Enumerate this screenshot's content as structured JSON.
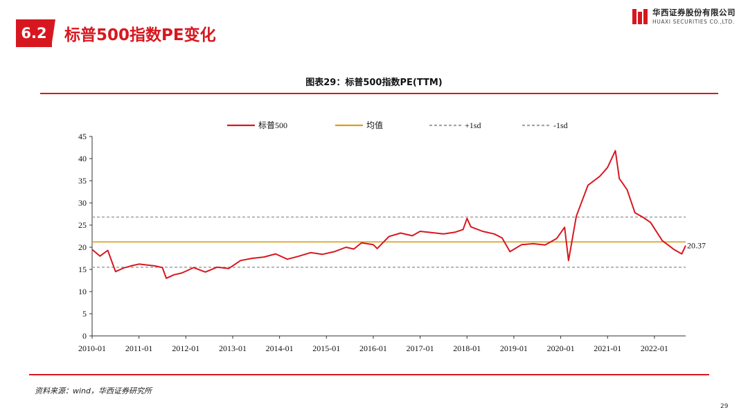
{
  "header": {
    "section_number": "6.2",
    "title": "标普500指数PE变化"
  },
  "logo": {
    "name_cn": "华西证券股份有限公司",
    "name_en": "HUAXI SECURITIES CO.,LTD."
  },
  "footer": {
    "source": "资料来源：wind，华西证券研究所",
    "page_number": "29"
  },
  "colors": {
    "brand_red": "#d7171f",
    "series_red": "#d7171f",
    "mean_line": "#d4a017",
    "sd_line": "#a6a6a6"
  },
  "chart_data": {
    "type": "line",
    "title": "图表29：标普500指数PE(TTM)",
    "xlabel": "",
    "ylabel": "",
    "ylim": [
      0,
      45
    ],
    "y_ticks": [
      0,
      5,
      10,
      15,
      20,
      25,
      30,
      35,
      40,
      45
    ],
    "x_ticks": [
      "2010-01",
      "2011-01",
      "2012-01",
      "2013-01",
      "2014-01",
      "2015-01",
      "2016-01",
      "2017-01",
      "2018-01",
      "2019-01",
      "2020-01",
      "2021-01",
      "2022-01"
    ],
    "x_range": [
      "2010-01",
      "2022-09"
    ],
    "grid": false,
    "legend_position": "top",
    "legend": [
      "标普500",
      "均值",
      "+1sd",
      "-1sd"
    ],
    "series": [
      {
        "name": "标普500",
        "x": [
          "2010-01",
          "2010-03",
          "2010-05",
          "2010-07",
          "2010-09",
          "2010-11",
          "2011-01",
          "2011-03",
          "2011-05",
          "2011-07",
          "2011-08",
          "2011-10",
          "2011-12",
          "2012-03",
          "2012-06",
          "2012-09",
          "2012-12",
          "2013-03",
          "2013-06",
          "2013-09",
          "2013-12",
          "2014-03",
          "2014-06",
          "2014-09",
          "2014-12",
          "2015-03",
          "2015-06",
          "2015-08",
          "2015-10",
          "2016-01",
          "2016-02",
          "2016-05",
          "2016-08",
          "2016-11",
          "2017-01",
          "2017-04",
          "2017-07",
          "2017-10",
          "2017-12",
          "2018-01",
          "2018-02",
          "2018-05",
          "2018-08",
          "2018-10",
          "2018-12",
          "2019-03",
          "2019-06",
          "2019-09",
          "2019-12",
          "2020-02",
          "2020-03",
          "2020-05",
          "2020-08",
          "2020-11",
          "2021-01",
          "2021-03",
          "2021-04",
          "2021-06",
          "2021-08",
          "2021-10",
          "2021-12",
          "2022-03",
          "2022-06",
          "2022-08",
          "2022-09"
        ],
        "values": [
          19.5,
          18.0,
          19.3,
          14.5,
          15.3,
          15.8,
          16.2,
          16.0,
          15.8,
          15.4,
          13.0,
          13.8,
          14.2,
          15.4,
          14.4,
          15.5,
          15.2,
          17.0,
          17.5,
          17.8,
          18.5,
          17.3,
          18.0,
          18.8,
          18.4,
          19.0,
          20.0,
          19.6,
          21.0,
          20.6,
          19.7,
          22.4,
          23.2,
          22.6,
          23.6,
          23.3,
          23.0,
          23.4,
          24.0,
          26.5,
          24.6,
          23.6,
          23.0,
          22.1,
          19.0,
          20.6,
          20.8,
          20.5,
          22.0,
          24.5,
          17.0,
          27.0,
          34.0,
          36.0,
          38.0,
          41.8,
          35.5,
          33.0,
          27.8,
          26.8,
          25.6,
          21.5,
          19.5,
          18.5,
          20.37
        ]
      },
      {
        "name": "均值",
        "values": [
          21.2
        ]
      },
      {
        "name": "+1sd",
        "values": [
          26.8
        ]
      },
      {
        "name": "-1sd",
        "values": [
          15.5
        ]
      }
    ],
    "annotations": [
      {
        "text": "20.37",
        "x": "2022-09",
        "y": 20.37
      }
    ]
  }
}
